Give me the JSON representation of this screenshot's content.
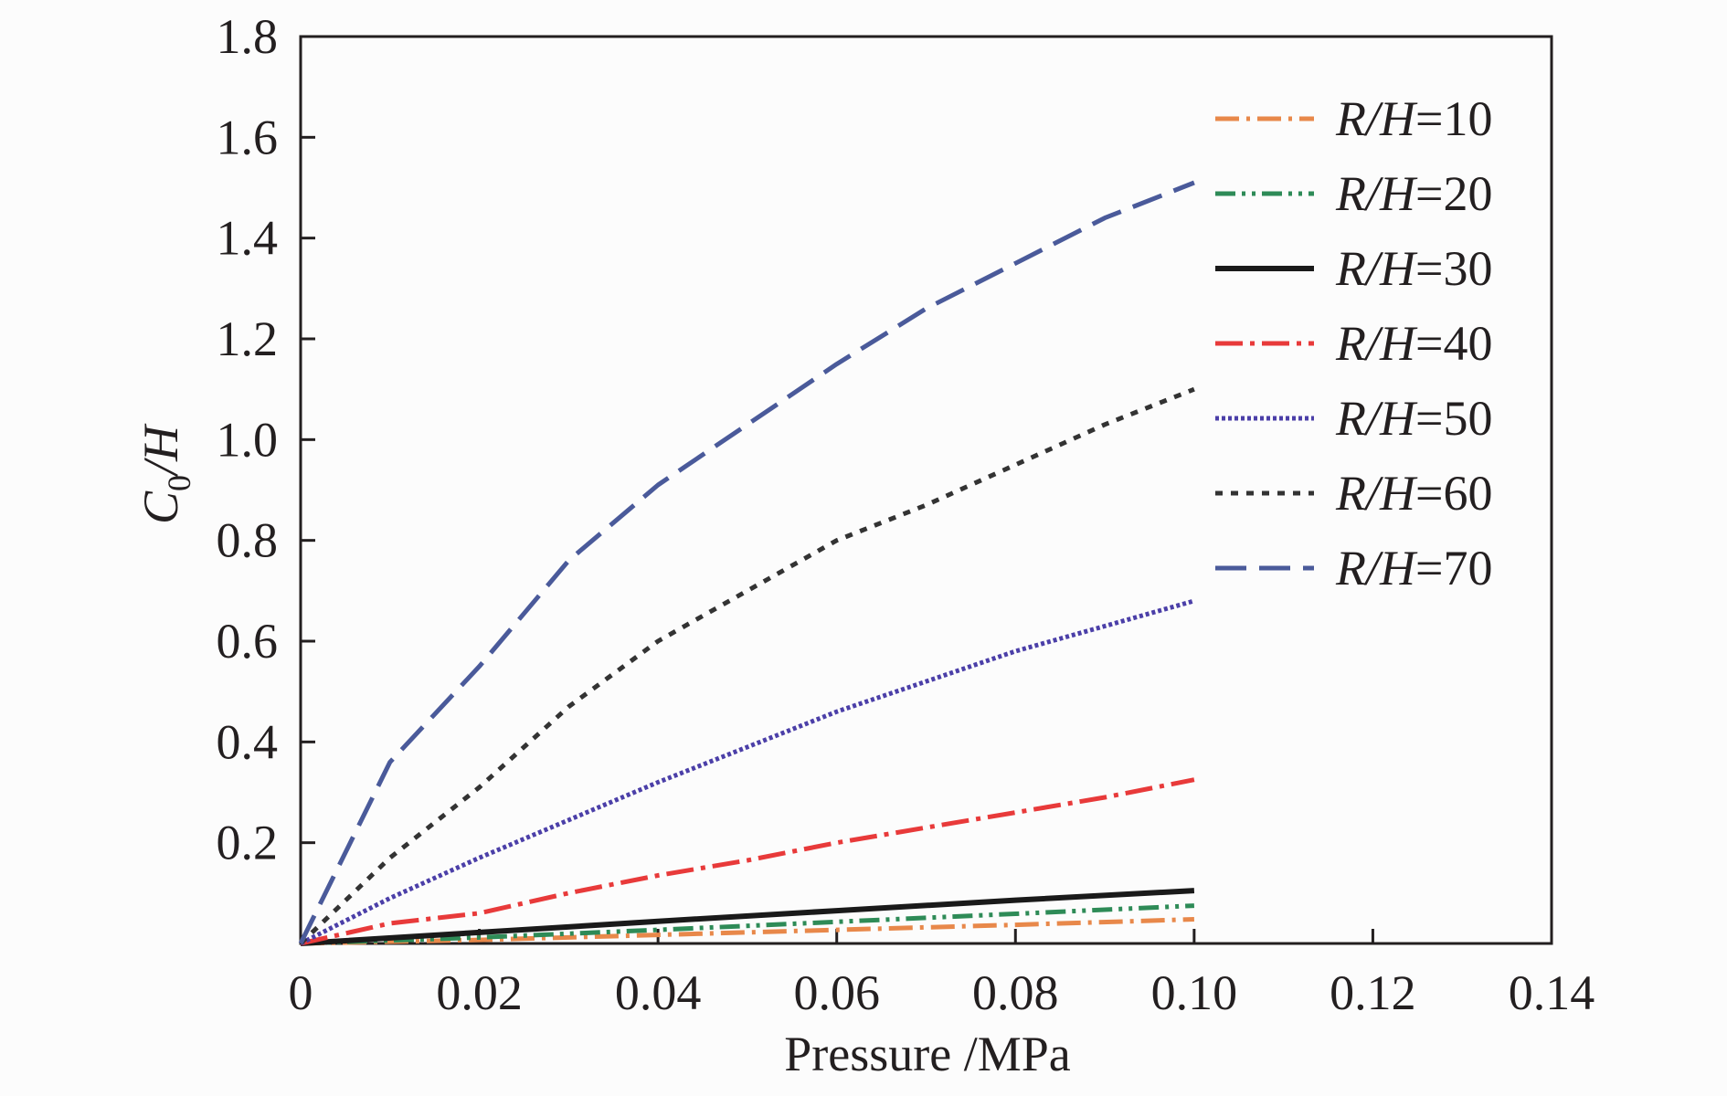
{
  "chart_data": {
    "type": "line",
    "xlabel": "Pressure /MPa",
    "ylabel_main": "C",
    "ylabel_sub": "0",
    "ylabel_rest": "/H",
    "xlim": [
      0,
      0.14
    ],
    "ylim": [
      0,
      1.8
    ],
    "x_ticks": [
      0,
      0.02,
      0.04,
      0.06,
      0.08,
      0.1,
      0.12,
      0.14
    ],
    "x_tick_labels": [
      "0",
      "0.02",
      "0.04",
      "0.06",
      "0.08",
      "0.10",
      "0.12",
      "0.14"
    ],
    "y_ticks": [
      0.2,
      0.4,
      0.6,
      0.8,
      1.0,
      1.2,
      1.4,
      1.6,
      1.8
    ],
    "y_tick_labels": [
      "0.2",
      "0.4",
      "0.6",
      "0.8",
      "1.0",
      "1.2",
      "1.4",
      "1.6",
      "1.8"
    ],
    "grid": false,
    "legend_position": "top-right",
    "series": [
      {
        "name": "R/H=10",
        "label_italic": "R/H",
        "label_value": "=10",
        "color": "#e8884a",
        "dash": "26 8 4 8",
        "x": [
          0,
          0.02,
          0.04,
          0.06,
          0.08,
          0.1
        ],
        "values": [
          0,
          0.007,
          0.017,
          0.027,
          0.037,
          0.048
        ]
      },
      {
        "name": "R/H=20",
        "label_italic": "R/H",
        "label_value": "=20",
        "color": "#2e8b57",
        "dash": "22 7 4 7 4 7",
        "x": [
          0,
          0.02,
          0.04,
          0.06,
          0.08,
          0.1
        ],
        "values": [
          0,
          0.012,
          0.027,
          0.043,
          0.059,
          0.075
        ]
      },
      {
        "name": "R/H=30",
        "label_italic": "R/H",
        "label_value": "=30",
        "color": "#1a1a1a",
        "dash": "",
        "x": [
          0,
          0.02,
          0.04,
          0.06,
          0.08,
          0.1
        ],
        "values": [
          0,
          0.022,
          0.044,
          0.065,
          0.086,
          0.105
        ]
      },
      {
        "name": "R/H=40",
        "label_italic": "R/H",
        "label_value": "=40",
        "color": "#e83a3a",
        "dash": "30 8 5 8",
        "x": [
          0,
          0.01,
          0.02,
          0.03,
          0.04,
          0.05,
          0.06,
          0.07,
          0.08,
          0.09,
          0.1
        ],
        "values": [
          0,
          0.04,
          0.06,
          0.1,
          0.135,
          0.165,
          0.2,
          0.23,
          0.26,
          0.29,
          0.325
        ]
      },
      {
        "name": "R/H=50",
        "label_italic": "R/H",
        "label_value": "=50",
        "color": "#4b3fa8",
        "dash": "4 3",
        "x": [
          0,
          0.01,
          0.02,
          0.03,
          0.04,
          0.05,
          0.06,
          0.07,
          0.08,
          0.09,
          0.1
        ],
        "values": [
          0,
          0.09,
          0.17,
          0.245,
          0.32,
          0.39,
          0.46,
          0.52,
          0.58,
          0.63,
          0.68
        ]
      },
      {
        "name": "R/H=60",
        "label_italic": "R/H",
        "label_value": "=60",
        "color": "#333333",
        "dash": "8 9",
        "x": [
          0,
          0.01,
          0.02,
          0.03,
          0.04,
          0.05,
          0.06,
          0.07,
          0.08,
          0.09,
          0.1
        ],
        "values": [
          0,
          0.17,
          0.31,
          0.47,
          0.6,
          0.7,
          0.8,
          0.87,
          0.95,
          1.03,
          1.1
        ]
      },
      {
        "name": "R/H=70",
        "label_italic": "R/H",
        "label_value": "=70",
        "color": "#4a5a9a",
        "dash": "34 14",
        "x": [
          0,
          0.01,
          0.02,
          0.03,
          0.04,
          0.05,
          0.06,
          0.07,
          0.08,
          0.09,
          0.1
        ],
        "values": [
          0,
          0.36,
          0.55,
          0.76,
          0.91,
          1.03,
          1.15,
          1.26,
          1.35,
          1.44,
          1.51
        ]
      }
    ]
  }
}
